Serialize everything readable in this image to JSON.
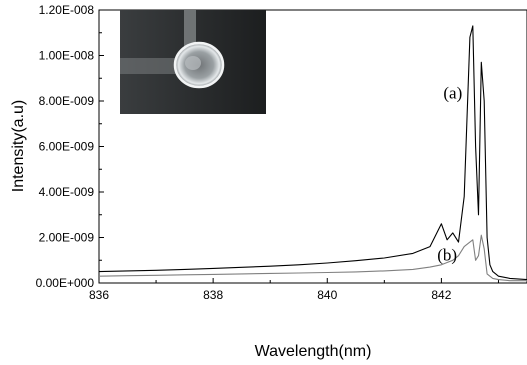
{
  "chart_data": {
    "type": "line",
    "xlabel": "Wavelength(nm)",
    "ylabel": "Intensity(a.u)",
    "xlim": [
      836,
      843.5
    ],
    "ylim": [
      0,
      1.2e-08
    ],
    "x_ticks": [
      836,
      838,
      840,
      842
    ],
    "x_tick_labels": [
      "836",
      "838",
      "840",
      "842"
    ],
    "y_ticks": [
      0,
      2e-09,
      4e-09,
      6e-09,
      8e-09,
      1e-08,
      1.2e-08
    ],
    "y_tick_labels": [
      "0.00E+000",
      "2.00E-009",
      "4.00E-009",
      "6.00E-009",
      "8.00E-009",
      "1.00E-008",
      "1.20E-008"
    ],
    "grid": false,
    "annotations": [
      {
        "text": "(a)",
        "x": 842.2,
        "y": 8.1e-09
      },
      {
        "text": "(b)",
        "x": 842.1,
        "y": 1e-09
      }
    ],
    "inset": "photo of a bright ring-shaped microcavity on a dark background, top-left",
    "series": [
      {
        "color": "#000000",
        "x": [
          836.0,
          836.5,
          837.0,
          837.5,
          838.0,
          838.5,
          839.0,
          839.5,
          840.0,
          840.5,
          841.0,
          841.5,
          841.8,
          842.0,
          842.1,
          842.2,
          842.3,
          842.4,
          842.5,
          842.55,
          842.6,
          842.65,
          842.7,
          842.75,
          842.8,
          842.85,
          842.9,
          843.0,
          843.2,
          843.5
        ],
        "y": [
          5e-10,
          5.3e-10,
          5.6e-10,
          6e-10,
          6.4e-10,
          6.9e-10,
          7.4e-10,
          8e-10,
          8.8e-10,
          9.8e-10,
          1.1e-09,
          1.3e-09,
          1.6e-09,
          2.6e-09,
          1.9e-09,
          2.2e-09,
          1.8e-09,
          3.8e-09,
          1.08e-08,
          1.13e-08,
          6e-09,
          3e-09,
          9.7e-09,
          8e-09,
          2e-09,
          8e-10,
          5e-10,
          3e-10,
          2e-10,
          1.5e-10
        ]
      },
      {
        "color": "#808080",
        "x": [
          836.0,
          836.5,
          837.0,
          837.5,
          838.0,
          838.5,
          839.0,
          839.5,
          840.0,
          840.5,
          841.0,
          841.5,
          841.8,
          842.0,
          842.1,
          842.2,
          842.3,
          842.4,
          842.5,
          842.55,
          842.6,
          842.65,
          842.7,
          842.75,
          842.8,
          842.85,
          842.9,
          843.0,
          843.2,
          843.5
        ],
        "y": [
          3e-10,
          3.2e-10,
          3.4e-10,
          3.6e-10,
          3.8e-10,
          4e-10,
          4.2e-10,
          4.4e-10,
          4.6e-10,
          4.9e-10,
          5.3e-10,
          6e-10,
          7e-10,
          8e-10,
          9e-10,
          1e-09,
          1.2e-09,
          1.6e-09,
          1.8e-09,
          1.9e-09,
          1e-09,
          1.2e-09,
          2.1e-09,
          1.5e-09,
          4e-10,
          3e-10,
          2e-10,
          1.5e-10,
          1e-10,
          1e-10
        ]
      }
    ]
  }
}
